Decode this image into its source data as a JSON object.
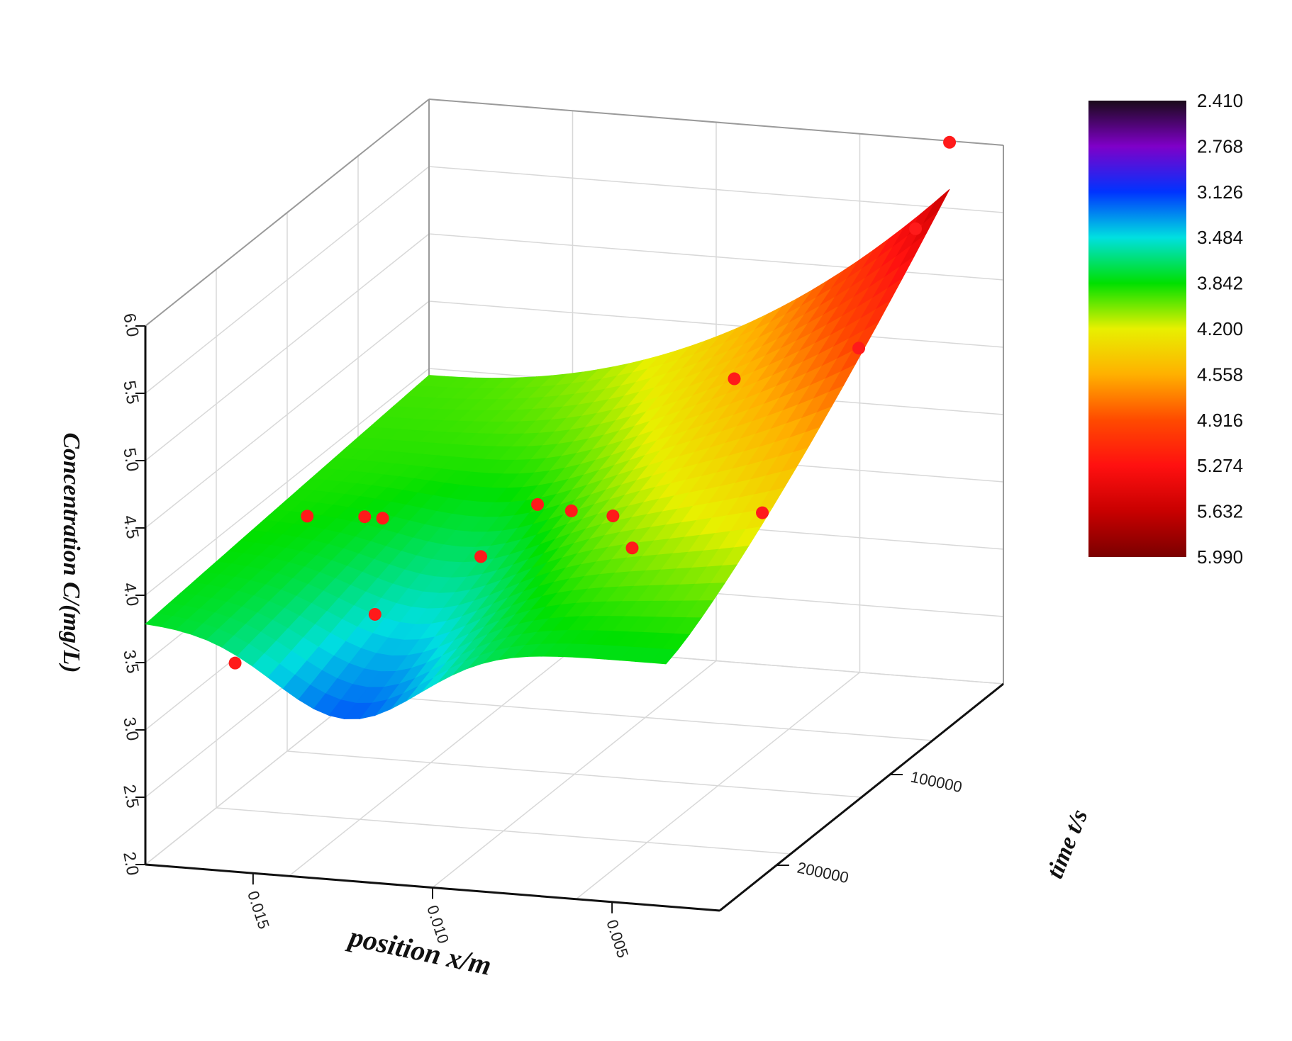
{
  "chart_data": {
    "type": "surface3d",
    "title": "",
    "xlabel": "position x/m",
    "ylabel": "time t/s",
    "zlabel": "Concentration  C/(mg/L)",
    "x_ticks": [
      "0.015",
      "0.010",
      "0.005"
    ],
    "y_ticks": [
      "100000",
      "200000"
    ],
    "z_ticks": [
      "2.0",
      "2.5",
      "3.0",
      "3.5",
      "4.0",
      "4.5",
      "5.0",
      "5.5",
      "6.0"
    ],
    "colorbar_ticks": [
      "2.410",
      "2.768",
      "3.126",
      "3.484",
      "3.842",
      "4.200",
      "4.558",
      "4.916",
      "5.274",
      "5.632",
      "5.990"
    ],
    "colorbar_colors": [
      "#1a0a1a",
      "#7f00c8",
      "#0033ff",
      "#00e0e0",
      "#00e000",
      "#e8f000",
      "#ffb000",
      "#ff4a00",
      "#ff1010",
      "#c80000",
      "#7a0000"
    ],
    "x_range": [
      0.002,
      0.018
    ],
    "y_range": [
      0,
      250000
    ],
    "z_range": [
      2.0,
      6.0
    ],
    "grid": true,
    "scatter": [
      {
        "x": 0.0035,
        "y": 0,
        "z": 5.99
      },
      {
        "x": 0.0035,
        "y": 30000,
        "z": 5.55
      },
      {
        "x": 0.0035,
        "y": 80000,
        "z": 5.0
      },
      {
        "x": 0.0035,
        "y": 165000,
        "z": 4.35
      },
      {
        "x": 0.0076,
        "y": 60000,
        "z": 4.55
      },
      {
        "x": 0.0076,
        "y": 150000,
        "z": 3.9
      },
      {
        "x": 0.0094,
        "y": 110000,
        "z": 3.83
      },
      {
        "x": 0.0104,
        "y": 115000,
        "z": 3.88
      },
      {
        "x": 0.0115,
        "y": 110000,
        "z": 3.87
      },
      {
        "x": 0.0115,
        "y": 160000,
        "z": 3.82
      },
      {
        "x": 0.0135,
        "y": 190000,
        "z": 3.55
      },
      {
        "x": 0.0155,
        "y": 120000,
        "z": 3.75
      },
      {
        "x": 0.016,
        "y": 120000,
        "z": 3.75
      },
      {
        "x": 0.0176,
        "y": 120000,
        "z": 3.72
      },
      {
        "x": 0.0155,
        "y": 250000,
        "z": 3.55
      }
    ]
  }
}
